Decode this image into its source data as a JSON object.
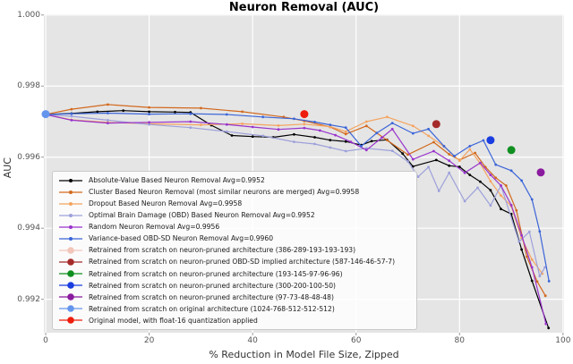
{
  "chart_data": {
    "type": "line",
    "title": "Neuron Removal (AUC)",
    "xlabel": "% Reduction in Model File Size, Zipped",
    "ylabel": "AUC",
    "xlim": [
      -0.35,
      100.2
    ],
    "ylim": [
      0.99106,
      1.00002
    ],
    "x_ticks": [
      0,
      20,
      40,
      60,
      80,
      100
    ],
    "y_ticks": [
      0.992,
      0.994,
      0.996,
      0.998,
      1.0
    ],
    "grid": true,
    "axes_background": "#e5e5e5",
    "grid_color": "#ffffff",
    "legend_position": "lower-left",
    "series": [
      {
        "name": "Absolute-Value Based Neuron Removal Avg=0.9952",
        "color": "#000000",
        "points": [
          [
            0,
            0.9972
          ],
          [
            5,
            0.99723
          ],
          [
            10,
            0.99728
          ],
          [
            15,
            0.99731
          ],
          [
            20,
            0.99728
          ],
          [
            25,
            0.99727
          ],
          [
            28,
            0.99726
          ],
          [
            32,
            0.9969
          ],
          [
            36,
            0.99661
          ],
          [
            40,
            0.99658
          ],
          [
            44,
            0.99656
          ],
          [
            48,
            0.99664
          ],
          [
            52,
            0.99656
          ],
          [
            55,
            0.99648
          ],
          [
            58,
            0.99644
          ],
          [
            61,
            0.99634
          ],
          [
            63,
            0.99645
          ],
          [
            66,
            0.99649
          ],
          [
            69,
            0.9961
          ],
          [
            71,
            0.99574
          ],
          [
            75.5,
            0.99592
          ],
          [
            78,
            0.99576
          ],
          [
            80,
            0.99573
          ],
          [
            82,
            0.9955
          ],
          [
            84,
            0.99531
          ],
          [
            86,
            0.99507
          ],
          [
            88,
            0.99454
          ],
          [
            90,
            0.9944
          ],
          [
            92,
            0.9934
          ],
          [
            94,
            0.99252
          ],
          [
            97.2,
            0.99119
          ]
        ]
      },
      {
        "name": "Cluster Based Neuron Removal (most similar neurons are merged) Avg=0.9958",
        "color": "#d2691e",
        "points": [
          [
            0,
            0.9972
          ],
          [
            5,
            0.99735
          ],
          [
            12,
            0.99748
          ],
          [
            20,
            0.9974
          ],
          [
            30,
            0.99738
          ],
          [
            38,
            0.99728
          ],
          [
            46,
            0.99713
          ],
          [
            50,
            0.99702
          ],
          [
            55,
            0.99685
          ],
          [
            58,
            0.99665
          ],
          [
            62,
            0.99688
          ],
          [
            66,
            0.99648
          ],
          [
            70,
            0.99607
          ],
          [
            75,
            0.99642
          ],
          [
            78,
            0.99608
          ],
          [
            80,
            0.99592
          ],
          [
            83,
            0.99612
          ],
          [
            85,
            0.99572
          ],
          [
            87,
            0.99542
          ],
          [
            89,
            0.9952
          ],
          [
            91,
            0.9945
          ],
          [
            93,
            0.9932
          ],
          [
            95,
            0.9925
          ],
          [
            96.6,
            0.9921
          ]
        ]
      },
      {
        "name": "Dropout Based Neuron Removal Avg=0.9958",
        "color": "#f4a460",
        "points": [
          [
            0,
            0.9972
          ],
          [
            5,
            0.99705
          ],
          [
            12,
            0.99698
          ],
          [
            20,
            0.99694
          ],
          [
            30,
            0.99691
          ],
          [
            38,
            0.99694
          ],
          [
            45,
            0.99689
          ],
          [
            50,
            0.99693
          ],
          [
            55,
            0.99686
          ],
          [
            58,
            0.99672
          ],
          [
            62,
            0.997
          ],
          [
            66,
            0.99713
          ],
          [
            71,
            0.99688
          ],
          [
            74,
            0.9966
          ],
          [
            77,
            0.9963
          ],
          [
            80,
            0.9959
          ],
          [
            82,
            0.99622
          ],
          [
            84,
            0.99582
          ],
          [
            86,
            0.99532
          ],
          [
            88,
            0.99492
          ],
          [
            90,
            0.99462
          ],
          [
            92,
            0.99372
          ],
          [
            94,
            0.99312
          ],
          [
            96,
            0.99272
          ]
        ]
      },
      {
        "name": "Optimal Brain Damage (OBD) Based Neuron Removal Avg=0.9952",
        "color": "#9da0db",
        "points": [
          [
            0,
            0.9972
          ],
          [
            5,
            0.99715
          ],
          [
            12,
            0.99704
          ],
          [
            20,
            0.99692
          ],
          [
            28,
            0.99683
          ],
          [
            35,
            0.99672
          ],
          [
            42,
            0.9966
          ],
          [
            48,
            0.99643
          ],
          [
            52,
            0.99637
          ],
          [
            55,
            0.99627
          ],
          [
            58,
            0.99617
          ],
          [
            62,
            0.99625
          ],
          [
            67,
            0.99618
          ],
          [
            70,
            0.99588
          ],
          [
            72,
            0.99545
          ],
          [
            74,
            0.99572
          ],
          [
            76,
            0.99505
          ],
          [
            78,
            0.99556
          ],
          [
            81,
            0.99476
          ],
          [
            83.5,
            0.99514
          ],
          [
            86,
            0.99464
          ],
          [
            88,
            0.9952
          ],
          [
            91.5,
            0.99362
          ],
          [
            93.5,
            0.9939
          ],
          [
            95.5,
            0.99265
          ],
          [
            96.5,
            0.9929
          ]
        ]
      },
      {
        "name": "Random Neuron Removal Avg=0.9956",
        "color": "#9932cc",
        "points": [
          [
            0,
            0.9972
          ],
          [
            5,
            0.99704
          ],
          [
            12,
            0.99696
          ],
          [
            20,
            0.99698
          ],
          [
            28,
            0.997
          ],
          [
            35,
            0.99692
          ],
          [
            40,
            0.99685
          ],
          [
            45,
            0.99678
          ],
          [
            50,
            0.99682
          ],
          [
            53,
            0.99675
          ],
          [
            56,
            0.99662
          ],
          [
            59,
            0.99643
          ],
          [
            62,
            0.9962
          ],
          [
            65,
            0.99655
          ],
          [
            67,
            0.99679
          ],
          [
            71,
            0.99594
          ],
          [
            75,
            0.99617
          ],
          [
            78,
            0.9959
          ],
          [
            81,
            0.99556
          ],
          [
            84,
            0.99584
          ],
          [
            86,
            0.9955
          ],
          [
            88,
            0.9952
          ],
          [
            90,
            0.99465
          ],
          [
            92,
            0.9938
          ],
          [
            94,
            0.9929
          ],
          [
            96.7,
            0.99131
          ]
        ]
      },
      {
        "name": "Variance-based OBD-SD Neuron Removal Avg=0.9960",
        "color": "#3a64d8",
        "points": [
          [
            0,
            0.9972
          ],
          [
            5,
            0.99722
          ],
          [
            12,
            0.99724
          ],
          [
            20,
            0.99721
          ],
          [
            28,
            0.99722
          ],
          [
            35,
            0.9972
          ],
          [
            42,
            0.99713
          ],
          [
            48,
            0.99708
          ],
          [
            52,
            0.99699
          ],
          [
            55,
            0.99691
          ],
          [
            58,
            0.99683
          ],
          [
            61,
            0.99631
          ],
          [
            64,
            0.99668
          ],
          [
            67,
            0.99696
          ],
          [
            71,
            0.99667
          ],
          [
            74,
            0.99679
          ],
          [
            77,
            0.99631
          ],
          [
            79,
            0.99603
          ],
          [
            82,
            0.99631
          ],
          [
            84.6,
            0.99647
          ],
          [
            87,
            0.99579
          ],
          [
            90,
            0.99562
          ],
          [
            92,
            0.99534
          ],
          [
            94,
            0.99481
          ],
          [
            95.5,
            0.99391
          ],
          [
            97.3,
            0.99251
          ]
        ]
      }
    ],
    "points": [
      {
        "name": "Retrained from scratch on original architecture (1024-768-512-512-512)",
        "color": "#6495ed",
        "x": 0,
        "y": 0.99721
      },
      {
        "name": "Original model, with float-16 quantization applied",
        "color": "#ee1c0c",
        "x": 50,
        "y": 0.99721
      },
      {
        "name": "Retrained from scratch on neuron-pruned OBD-SD implied architecture (587-146-46-57-7)",
        "color": "#a52a2a",
        "x": 75.5,
        "y": 0.99693
      },
      {
        "name": "Retrained from scratch on neuron-pruned architecture (300-200-100-50)",
        "color": "#1a3de0",
        "x": 86,
        "y": 0.99648
      },
      {
        "name": "Retrained from scratch on neuron-pruned architecture (193-145-97-96-96)",
        "color": "#0f8f1f",
        "x": 90,
        "y": 0.9962
      },
      {
        "name": "Retrained from scratch on neuron-pruned architecture (97-73-48-48-48)",
        "color": "#8a1b9e",
        "x": 95.7,
        "y": 0.99557
      }
    ],
    "legend": [
      {
        "label": "Absolute-Value Based Neuron Removal Avg=0.9952",
        "color": "#000000",
        "glyph": "line"
      },
      {
        "label": "Cluster Based Neuron Removal (most similar neurons are merged) Avg=0.9958",
        "color": "#d2691e",
        "glyph": "line"
      },
      {
        "label": "Dropout Based Neuron Removal Avg=0.9958",
        "color": "#f4a460",
        "glyph": "line"
      },
      {
        "label": "Optimal Brain Damage (OBD) Based Neuron Removal Avg=0.9952",
        "color": "#9da0db",
        "glyph": "line"
      },
      {
        "label": "Random Neuron Removal Avg=0.9956",
        "color": "#9932cc",
        "glyph": "line"
      },
      {
        "label": "Variance-based OBD-SD Neuron Removal Avg=0.9960",
        "color": "#3a64d8",
        "glyph": "line"
      },
      {
        "label": "Retrained from scratch on neuron-pruned architecture (386-289-193-193-193)",
        "color": "#f2c6bb",
        "glyph": "dot"
      },
      {
        "label": "Retrained from scratch on neuron-pruned OBD-SD implied architecture (587-146-46-57-7)",
        "color": "#a52a2a",
        "glyph": "dot"
      },
      {
        "label": "Retrained from scratch on neuron-pruned architecture (193-145-97-96-96)",
        "color": "#0f8f1f",
        "glyph": "dot"
      },
      {
        "label": "Retrained from scratch on neuron-pruned architecture (300-200-100-50)",
        "color": "#1a3de0",
        "glyph": "dot"
      },
      {
        "label": "Retrained from scratch on neuron-pruned architecture (97-73-48-48-48)",
        "color": "#8a1b9e",
        "glyph": "dot"
      },
      {
        "label": "Retrained from scratch on original architecture (1024-768-512-512-512)",
        "color": "#6495ed",
        "glyph": "dot"
      },
      {
        "label": "Original model, with float-16 quantization applied",
        "color": "#ee1c0c",
        "glyph": "dot"
      }
    ]
  }
}
